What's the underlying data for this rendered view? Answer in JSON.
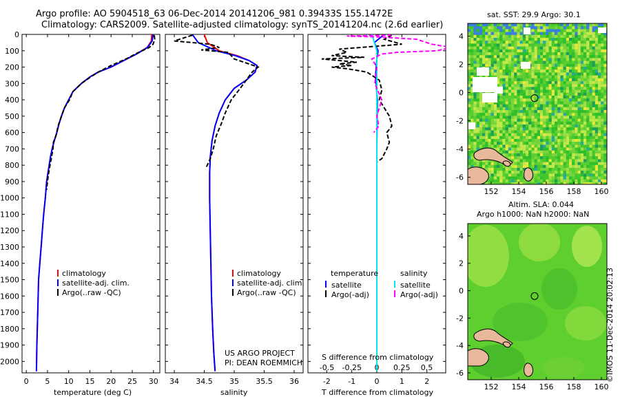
{
  "header": {
    "title_line1": "Argo profile: AO 5904518_63 06-Dec-2014 20141206_981 0.39433S 155.1472E",
    "title_line2": "Climatology: CARS2009. Satellite-adjusted climatology: synTS_20141204.nc (2.6d earlier)"
  },
  "colors": {
    "climatology": "#ff0000",
    "satellite": "#0000ff",
    "argo": "#000000",
    "salinity_satellite": "#00e5ee",
    "salinity_argo": "#ff00ff",
    "land": "#e8b89a"
  },
  "depth_axis": {
    "ticks": [
      "0",
      "100",
      "200",
      "300",
      "400",
      "500",
      "600",
      "700",
      "800",
      "900",
      "1000",
      "1100",
      "1200",
      "1300",
      "1400",
      "1500",
      "1600",
      "1700",
      "1800",
      "1900",
      "2000"
    ],
    "range": [
      0,
      2070
    ],
    "reversed": true
  },
  "chart_data": [
    {
      "type": "line",
      "name": "temperature",
      "xlabel": "temperature (deg C)",
      "ylabel": "",
      "xlim": [
        -1,
        31.5
      ],
      "ylim": [
        2070,
        0
      ],
      "xticks": [
        "0",
        "5",
        "10",
        "15",
        "20",
        "25",
        "30"
      ],
      "legend": [
        "climatology",
        "satellite-adj. clim.",
        "Argo(..raw -QC)"
      ],
      "legend_position": "lower-right",
      "series": [
        {
          "name": "climatology",
          "color": "#ff0000",
          "style": "solid",
          "x": [
            29.6,
            29.5,
            28.5,
            26,
            23,
            20,
            17,
            15,
            13,
            11,
            10,
            9,
            8.3,
            7.7,
            7.2,
            6.6,
            6.1,
            5.7,
            5.4,
            5.1,
            4.8,
            4.5,
            4.1,
            3.8,
            3.5,
            3.2,
            2.9,
            2.7,
            2.5,
            2.4
          ],
          "y": [
            0,
            40,
            80,
            120,
            160,
            200,
            230,
            260,
            300,
            350,
            400,
            450,
            500,
            550,
            600,
            650,
            700,
            750,
            800,
            850,
            900,
            1000,
            1100,
            1200,
            1300,
            1400,
            1500,
            1700,
            1900,
            2060
          ]
        },
        {
          "name": "satellite-adj. clim.",
          "color": "#0000ff",
          "style": "solid",
          "x": [
            29.9,
            29.7,
            28.6,
            26,
            23,
            20,
            17,
            15,
            13,
            11,
            10,
            9,
            8.3,
            7.7,
            7.2,
            6.6,
            6.1,
            5.7,
            5.4,
            5.1,
            4.8,
            4.5,
            4.1,
            3.8,
            3.5,
            3.2,
            2.9,
            2.7,
            2.5,
            2.4
          ],
          "y": [
            0,
            40,
            80,
            120,
            160,
            200,
            230,
            260,
            300,
            350,
            400,
            450,
            500,
            550,
            600,
            650,
            700,
            750,
            800,
            850,
            900,
            1000,
            1100,
            1200,
            1300,
            1400,
            1500,
            1700,
            1900,
            2060
          ]
        },
        {
          "name": "Argo(..raw -QC)",
          "color": "#000000",
          "style": "dashed",
          "x": [
            30.2,
            30.3,
            29.9,
            29.0,
            26.5,
            23.5,
            20,
            17,
            15.2,
            13,
            11,
            10.2,
            9,
            8.3,
            7.5,
            7,
            6.4,
            6.3,
            5.9,
            5.6,
            5.2,
            5.0,
            4.8
          ],
          "y": [
            5,
            30,
            60,
            80,
            110,
            150,
            190,
            230,
            260,
            300,
            350,
            400,
            450,
            500,
            560,
            620,
            660,
            700,
            760,
            800,
            860,
            900,
            950
          ]
        }
      ]
    },
    {
      "type": "line",
      "name": "salinity",
      "xlabel": "salinity",
      "ylabel": "",
      "xlim": [
        33.85,
        36.15
      ],
      "ylim": [
        2070,
        0
      ],
      "xticks": [
        "34",
        "34.5",
        "35",
        "35.5",
        "36"
      ],
      "legend": [
        "climatology",
        "satellite-adj. clim.",
        "Argo(..raw -QC)"
      ],
      "legend_position": "lower-right",
      "annotation": [
        "US ARGO PROJECT",
        "PI: DEAN ROEMMICH"
      ],
      "series": [
        {
          "name": "climatology",
          "color": "#ff0000",
          "style": "solid",
          "x": [
            34.5,
            34.55,
            34.75,
            35.05,
            35.25,
            35.38,
            35.35,
            35.2,
            35.0,
            34.85,
            34.75,
            34.68,
            34.63,
            34.6,
            34.59,
            34.59,
            34.6,
            34.61,
            34.62,
            34.64,
            34.66,
            34.68
          ],
          "y": [
            0,
            50,
            100,
            130,
            160,
            190,
            230,
            280,
            330,
            400,
            480,
            560,
            650,
            750,
            850,
            1000,
            1200,
            1400,
            1600,
            1800,
            1950,
            2060
          ]
        },
        {
          "name": "satellite-adj. clim.",
          "color": "#0000ff",
          "style": "solid",
          "x": [
            34.3,
            34.4,
            34.7,
            35.02,
            35.25,
            35.38,
            35.35,
            35.2,
            35.0,
            34.85,
            34.75,
            34.68,
            34.63,
            34.6,
            34.59,
            34.59,
            34.6,
            34.61,
            34.62,
            34.64,
            34.66,
            34.68
          ],
          "y": [
            0,
            50,
            100,
            130,
            160,
            190,
            230,
            280,
            330,
            400,
            480,
            560,
            650,
            750,
            850,
            1000,
            1200,
            1400,
            1600,
            1800,
            1950,
            2060
          ]
        },
        {
          "name": "Argo(..raw -QC)",
          "color": "#000000",
          "style": "dashed",
          "x": [
            34.3,
            34.0,
            34.6,
            34.75,
            34.45,
            34.9,
            35.0,
            35.4,
            35.3,
            35.22,
            35.1,
            34.95,
            34.85,
            34.78,
            34.7,
            34.65,
            34.6,
            34.55,
            34.52
          ],
          "y": [
            5,
            40,
            60,
            80,
            95,
            110,
            150,
            200,
            230,
            270,
            330,
            400,
            480,
            550,
            620,
            700,
            760,
            800,
            820
          ]
        }
      ]
    },
    {
      "type": "line",
      "name": "difference",
      "xlabel": "T difference from climatology",
      "xlabel_top": "S difference from climatology",
      "ylim": [
        2070,
        0
      ],
      "t_xlim": [
        -2.75,
        2.75
      ],
      "s_xlim": [
        -0.69,
        0.69
      ],
      "xticks_t": [
        "-2",
        "-1",
        "0",
        "1",
        "2"
      ],
      "xticks_s": [
        "-0.5",
        "-0.25",
        "0",
        "0.25",
        "0.5"
      ],
      "legend_headers": [
        "temperature",
        "salinity"
      ],
      "legend": [
        "satellite",
        "Argo(-adj)",
        "satellite",
        "Argo(-adj)"
      ],
      "series": [
        {
          "name": "temperature satellite",
          "color": "#0000ff",
          "style": "solid",
          "axis": "T",
          "x": [
            0.3,
            -0.1,
            0.05,
            0.0,
            -0.05,
            0.02,
            0.0,
            0.0,
            0.0,
            0.0
          ],
          "y": [
            0,
            50,
            100,
            150,
            250,
            400,
            700,
            1000,
            1500,
            2060
          ]
        },
        {
          "name": "temperature Argo(-adj)",
          "color": "#000000",
          "style": "dashed",
          "axis": "T",
          "x": [
            0.6,
            0.3,
            1.0,
            -1.5,
            -1.2,
            -1.8,
            -0.5,
            -2.2,
            -1.5,
            -0.8,
            -1.5,
            -1.0,
            -1.8,
            -1.2,
            -0.4,
            0.1,
            0.2,
            0.1,
            0.3,
            0.5,
            0.6,
            0.4,
            0.5,
            0.4,
            0.2,
            0.0
          ],
          "y": [
            5,
            30,
            60,
            90,
            110,
            130,
            140,
            150,
            160,
            170,
            180,
            190,
            200,
            210,
            230,
            280,
            340,
            400,
            450,
            500,
            560,
            600,
            660,
            700,
            760,
            780
          ]
        },
        {
          "name": "salinity satellite",
          "color": "#00e5ee",
          "style": "solid",
          "axis": "S",
          "x": [
            -0.05,
            -0.03,
            0.0,
            0.0,
            0.0,
            0.0,
            0.0,
            0.0,
            0.0,
            0.0,
            0.0
          ],
          "y": [
            0,
            40,
            100,
            200,
            300,
            500,
            800,
            1100,
            1400,
            1800,
            2060
          ]
        },
        {
          "name": "salinity Argo(-adj)",
          "color": "#ff00ff",
          "style": "dashed",
          "axis": "S",
          "x": [
            0.15,
            -0.3,
            0.0,
            0.4,
            0.55,
            0.75,
            0.6,
            0.2,
            0.05,
            -0.05,
            0.0,
            -0.02,
            0.05,
            0.0,
            0.02,
            -0.03
          ],
          "y": [
            5,
            10,
            15,
            30,
            60,
            80,
            100,
            110,
            120,
            150,
            200,
            300,
            400,
            500,
            560,
            600
          ]
        }
      ]
    },
    {
      "type": "heatmap",
      "name": "sat-sst-map",
      "title": "sat. SST: 29.9 Argo: 30.1",
      "xticks": [
        "152",
        "154",
        "156",
        "158",
        "160"
      ],
      "yticks": [
        "4",
        "2",
        "0",
        "-2",
        "-4",
        "-6"
      ],
      "xlim": [
        150.3,
        160.4
      ],
      "ylim": [
        -6.5,
        4.9
      ],
      "marker": {
        "lon": 155.15,
        "lat": -0.39
      }
    },
    {
      "type": "heatmap",
      "name": "altim-sla-map",
      "title": "Altim. SLA: 0.044",
      "subtitle": "Argo h1000: NaN h2000: NaN",
      "xticks": [
        "152",
        "154",
        "156",
        "158",
        "160"
      ],
      "yticks": [
        "4",
        "2",
        "0",
        "-2",
        "-4",
        "-6"
      ],
      "xlim": [
        150.3,
        160.4
      ],
      "ylim": [
        -6.5,
        4.9
      ],
      "marker": {
        "lon": 155.15,
        "lat": -0.39
      }
    }
  ],
  "footer": {
    "credit": "©IMOS 11-Dec-2014 20:02:13"
  }
}
